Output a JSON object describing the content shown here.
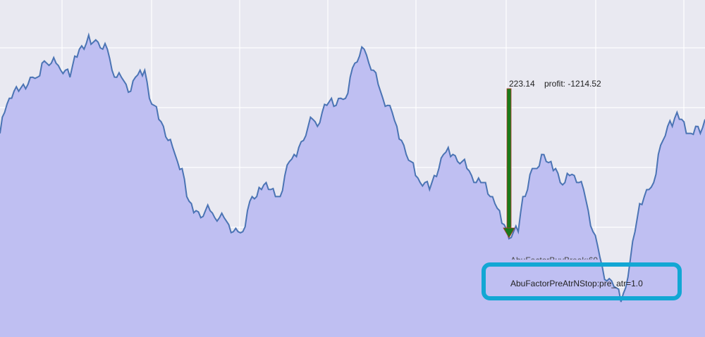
{
  "chart_data": {
    "type": "area",
    "title": "",
    "xlabel": "",
    "ylabel": "",
    "grid": true,
    "colors": {
      "background": "#e9e9f1",
      "grid": "#ffffff",
      "fill": "#bfbff2",
      "line": "#4b74b4",
      "arrow": "#1a7a1a",
      "arrow_outline": "#b03a2e",
      "callout_border": "#12a7d4"
    },
    "series": [
      {
        "values": [
          14.4,
          14.7,
          14.9,
          15.0,
          15.0,
          15.1,
          15.1,
          15.2,
          15.2,
          15.4,
          15.4,
          15.4,
          15.4,
          15.3,
          15.3,
          15.2,
          15.5,
          15.6,
          15.6,
          15.8,
          15.7,
          15.7,
          15.6,
          15.6,
          15.3,
          15.2,
          15.2,
          15.1,
          15.0,
          15.2,
          15.3,
          15.3,
          14.9,
          14.8,
          14.6,
          14.5,
          14.3,
          14.2,
          14.0,
          13.9,
          13.5,
          13.4,
          13.3,
          13.2,
          13.3,
          13.3,
          13.2,
          13.2,
          13.2,
          13.1,
          13.0,
          13.0,
          13.0,
          13.3,
          13.5,
          13.5,
          13.6,
          13.7,
          13.6,
          13.5,
          13.5,
          13.8,
          14.0,
          14.1,
          14.2,
          14.3,
          14.5,
          14.6,
          14.5,
          14.7,
          14.8,
          14.9,
          14.8,
          14.9,
          14.9,
          15.2,
          15.4,
          15.5,
          15.6,
          15.4,
          15.3,
          15.1,
          14.9,
          14.8,
          14.7,
          14.5,
          14.3,
          14.1,
          14.0,
          13.8,
          13.7,
          13.7,
          13.6,
          13.8,
          13.9,
          14.1,
          14.2,
          14.1,
          14.0,
          14.0,
          13.9,
          13.8,
          13.7,
          13.7,
          13.7,
          13.5,
          13.4,
          13.3,
          13.1,
          12.9,
          13.0,
          13.0,
          13.5,
          13.6,
          13.9,
          13.9,
          14.1,
          14.0,
          14.0,
          13.9,
          13.7,
          13.7,
          13.8,
          13.8,
          13.7,
          13.6,
          13.3,
          13.0,
          12.8,
          12.5,
          12.3,
          12.3,
          12.2,
          12.0,
          12.2,
          12.6,
          13.0,
          13.4,
          13.5,
          13.6,
          13.7,
          14.1,
          14.3,
          14.5,
          14.5,
          14.7,
          14.6,
          14.4,
          14.4,
          14.5,
          14.4,
          14.6
        ],
        "markers": {
          "entry_value": 223.14,
          "stop_label": "AbuFactorPreAtrNStop:pre_atr=1.0",
          "other_label": "AbuFactorBuyBreak:60"
        }
      }
    ],
    "annotations": {
      "price": "223.14",
      "profit": "profit: -1214.52",
      "stop_factor": "AbuFactorPreAtrNStop:pre_atr=1.0",
      "buy_factor": "AbuFactorBuyBreak:60"
    }
  }
}
